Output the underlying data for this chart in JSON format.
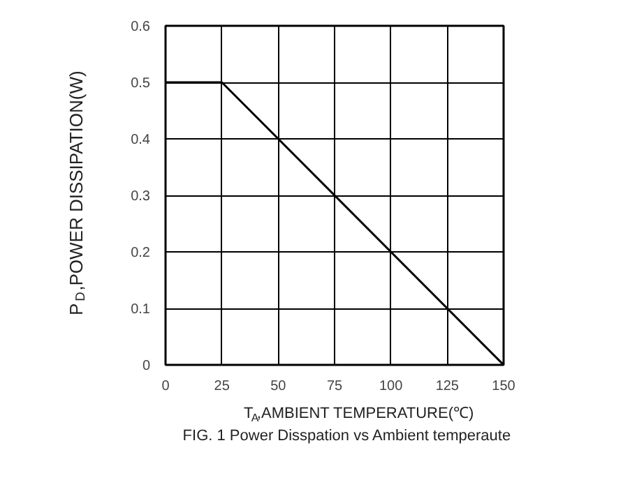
{
  "chart_data": {
    "type": "line",
    "xlabel": "T$_{A}$,AMBIENT TEMPERATURE(℃)",
    "ylabel": "P$_{D}$,POWER DISSIPATION(W)",
    "annotations": [
      "FIG. 1 Power Disspation vs Ambient temperaute"
    ],
    "x": [
      0,
      25,
      150
    ],
    "series": [
      {
        "color": "#000000",
        "values": [
          0.5,
          0.5,
          0
        ]
      }
    ],
    "xlim": [
      0,
      150
    ],
    "xticks": [
      0,
      25,
      50,
      75,
      100,
      125,
      150
    ],
    "ylim": [
      0,
      0.6
    ],
    "yticks": [
      0,
      0.1,
      0.2,
      0.3,
      0.4,
      0.5,
      0.6
    ],
    "grid": true,
    "marker": "none",
    "line_style": "solid"
  }
}
